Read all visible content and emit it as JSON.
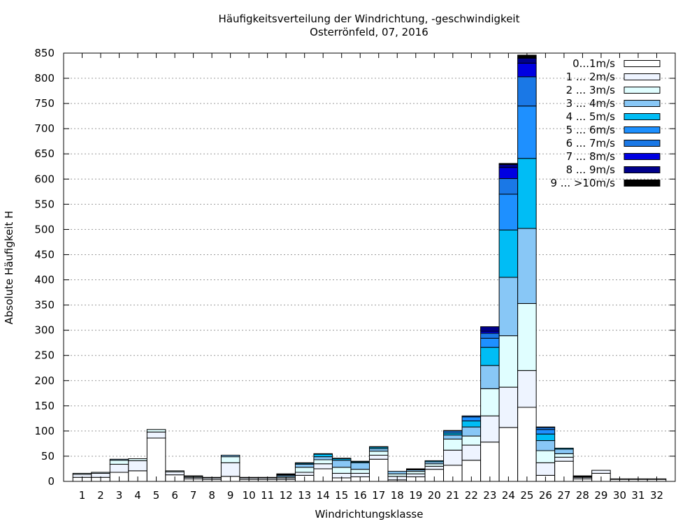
{
  "chart_data": {
    "type": "bar",
    "stacked": true,
    "title": "Häufigkeitsverteilung der Windrichtung, -geschwindigkeit",
    "subtitle": "Osterrönfeld, 07, 2016",
    "xlabel": "Windrichtungsklasse",
    "ylabel": "Absolute Häufigkeit H",
    "ylim": [
      0,
      850
    ],
    "yticks": [
      0,
      50,
      100,
      150,
      200,
      250,
      300,
      350,
      400,
      450,
      500,
      550,
      600,
      650,
      700,
      750,
      800,
      850
    ],
    "grid": "horizontal dotted",
    "legend_position": "top-right",
    "categories": [
      "1",
      "2",
      "3",
      "4",
      "5",
      "6",
      "7",
      "8",
      "9",
      "10",
      "11",
      "12",
      "13",
      "14",
      "15",
      "16",
      "17",
      "18",
      "19",
      "20",
      "21",
      "22",
      "23",
      "24",
      "25",
      "26",
      "27",
      "28",
      "29",
      "30",
      "31",
      "32"
    ],
    "series": [
      {
        "name": "0...1m/s",
        "color": "#ffffff",
        "values": [
          8,
          8,
          18,
          21,
          86,
          13,
          5,
          4,
          10,
          4,
          4,
          4,
          12,
          25,
          7,
          9,
          44,
          3,
          9,
          24,
          32,
          42,
          78,
          107,
          147,
          12,
          40,
          5,
          16,
          4,
          4,
          4
        ]
      },
      {
        "name": "1 ... 2m/s",
        "color": "#eef4ff",
        "values": [
          6,
          8,
          16,
          20,
          12,
          6,
          3,
          3,
          27,
          3,
          3,
          3,
          6,
          10,
          9,
          7,
          8,
          7,
          6,
          6,
          30,
          30,
          52,
          80,
          73,
          25,
          8,
          3,
          6,
          1,
          1,
          1
        ]
      },
      {
        "name": "2 ... 3m/s",
        "color": "#e0feff",
        "values": [
          2,
          2,
          8,
          4,
          5,
          2,
          2,
          1,
          12,
          1,
          1,
          2,
          10,
          8,
          12,
          8,
          8,
          5,
          5,
          5,
          22,
          18,
          54,
          102,
          133,
          24,
          7,
          1,
          0,
          0,
          0,
          0
        ]
      },
      {
        "name": "3 ... 4m/s",
        "color": "#88c7f6",
        "values": [
          0,
          0,
          2,
          0,
          0,
          0,
          1,
          0,
          3,
          0,
          0,
          3,
          6,
          6,
          14,
          13,
          5,
          5,
          3,
          4,
          8,
          18,
          46,
          116,
          149,
          20,
          9,
          0,
          0,
          0,
          0,
          0
        ]
      },
      {
        "name": "4 ... 5m/s",
        "color": "#00bdf5",
        "values": [
          0,
          0,
          0,
          0,
          0,
          0,
          0,
          0,
          0,
          0,
          0,
          1,
          2,
          5,
          3,
          2,
          3,
          0,
          1,
          2,
          4,
          12,
          36,
          94,
          139,
          13,
          2,
          0,
          0,
          0,
          0,
          0
        ]
      },
      {
        "name": "5 ... 6m/s",
        "color": "#1e90ff",
        "values": [
          0,
          0,
          0,
          0,
          0,
          0,
          0,
          0,
          0,
          0,
          0,
          1,
          1,
          1,
          1,
          1,
          1,
          0,
          1,
          0,
          4,
          8,
          18,
          71,
          104,
          9,
          0,
          1,
          0,
          0,
          0,
          0
        ]
      },
      {
        "name": "6 ... 7m/s",
        "color": "#1a78e6",
        "values": [
          0,
          0,
          0,
          0,
          0,
          0,
          0,
          0,
          0,
          0,
          0,
          1,
          0,
          0,
          0,
          0,
          0,
          0,
          0,
          0,
          1,
          2,
          10,
          31,
          58,
          4,
          0,
          1,
          0,
          0,
          0,
          0
        ]
      },
      {
        "name": "7 ... 8m/s",
        "color": "#0000e1",
        "values": [
          0,
          0,
          0,
          0,
          0,
          0,
          0,
          0,
          0,
          0,
          0,
          0,
          0,
          0,
          0,
          0,
          0,
          0,
          0,
          0,
          0,
          0,
          4,
          22,
          27,
          1,
          0,
          0,
          0,
          0,
          0,
          0
        ]
      },
      {
        "name": "8 ... 9m/s",
        "color": "#00008b",
        "values": [
          0,
          0,
          0,
          0,
          0,
          0,
          0,
          0,
          0,
          0,
          0,
          0,
          0,
          0,
          0,
          0,
          0,
          0,
          0,
          0,
          0,
          0,
          9,
          6,
          10,
          0,
          0,
          0,
          0,
          0,
          0,
          0
        ]
      },
      {
        "name": "9 ... >10m/s",
        "color": "#000000",
        "values": [
          0,
          0,
          0,
          0,
          0,
          0,
          0,
          0,
          0,
          0,
          0,
          0,
          0,
          0,
          0,
          0,
          0,
          0,
          0,
          0,
          0,
          0,
          0,
          2,
          6,
          0,
          0,
          0,
          0,
          0,
          0,
          0
        ]
      }
    ]
  }
}
